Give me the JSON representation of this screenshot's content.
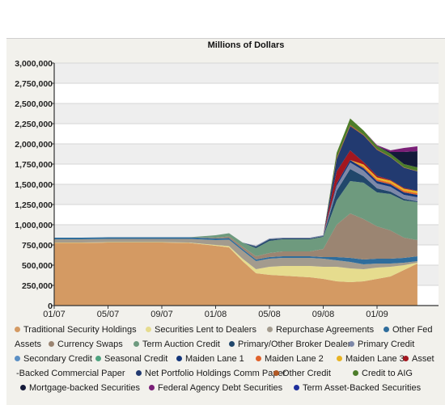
{
  "chart_data": {
    "type": "area",
    "title": "Millions of Dollars",
    "xlabel": "",
    "ylabel": "",
    "stacked": true,
    "ylim": [
      0,
      3000000
    ],
    "yticks": [
      "0",
      "250,000",
      "500,000",
      "750,000",
      "1,000,000",
      "1,250,000",
      "1,500,000",
      "1,750,000",
      "2,000,000",
      "2,250,000",
      "2,500,000",
      "2,750,000",
      "3,000,000"
    ],
    "xticks": [
      "01/07",
      "05/07",
      "09/07",
      "01/08",
      "05/08",
      "09/08",
      "01/09"
    ],
    "grid": true,
    "legend_position": "bottom",
    "x": [
      "2007-01",
      "2007-03",
      "2007-05",
      "2007-07",
      "2007-09",
      "2007-11",
      "2008-01",
      "2008-02",
      "2008-03",
      "2008-04",
      "2008-05",
      "2008-06",
      "2008-07",
      "2008-08",
      "2008-09",
      "2008-10",
      "2008-11",
      "2008-12",
      "2009-01",
      "2009-02",
      "2009-03",
      "2009-04"
    ],
    "series": [
      {
        "name": "Traditional Security Holdings",
        "color": "#d49a63",
        "values": [
          775000,
          775000,
          780000,
          780000,
          780000,
          775000,
          740000,
          720000,
          550000,
          400000,
          380000,
          370000,
          360000,
          350000,
          330000,
          300000,
          290000,
          300000,
          330000,
          360000,
          440000,
          520000
        ]
      },
      {
        "name": "Securities Lent to Dealers",
        "color": "#e6dc8e",
        "values": [
          5000,
          5000,
          5000,
          5000,
          5000,
          5000,
          10000,
          15000,
          30000,
          50000,
          100000,
          120000,
          130000,
          140000,
          150000,
          180000,
          170000,
          150000,
          140000,
          120000,
          60000,
          10000
        ]
      },
      {
        "name": "Repurchase Agreements",
        "color": "#a39b8e",
        "values": [
          40000,
          40000,
          40000,
          40000,
          40000,
          45000,
          60000,
          80000,
          100000,
          100000,
          100000,
          100000,
          100000,
          100000,
          100000,
          80000,
          80000,
          60000,
          50000,
          40000,
          30000,
          20000
        ]
      },
      {
        "name": "Other Fed Assets",
        "color": "#2f6d9c",
        "values": [
          20000,
          20000,
          20000,
          20000,
          20000,
          20000,
          20000,
          20000,
          20000,
          20000,
          20000,
          20000,
          20000,
          20000,
          20000,
          40000,
          50000,
          60000,
          60000,
          60000,
          60000,
          60000
        ]
      },
      {
        "name": "Currency Swaps",
        "color": "#9b8572",
        "values": [
          0,
          0,
          0,
          0,
          0,
          0,
          10000,
          20000,
          30000,
          40000,
          50000,
          60000,
          60000,
          60000,
          100000,
          400000,
          550000,
          500000,
          400000,
          350000,
          250000,
          200000
        ]
      },
      {
        "name": "Term Auction Credit",
        "color": "#6e9a7e",
        "values": [
          0,
          0,
          0,
          0,
          0,
          0,
          30000,
          40000,
          50000,
          100000,
          150000,
          150000,
          150000,
          150000,
          150000,
          300000,
          400000,
          450000,
          420000,
          450000,
          460000,
          470000
        ]
      },
      {
        "name": "Primary/Other Broker Dealer",
        "color": "#21476b",
        "values": [
          0,
          0,
          0,
          0,
          0,
          0,
          0,
          0,
          0,
          20000,
          20000,
          10000,
          10000,
          10000,
          10000,
          120000,
          150000,
          80000,
          50000,
          30000,
          20000,
          10000
        ]
      },
      {
        "name": "Primary Credit",
        "color": "#7d88a8",
        "values": [
          0,
          0,
          0,
          0,
          0,
          0,
          0,
          0,
          0,
          10000,
          10000,
          10000,
          10000,
          10000,
          10000,
          60000,
          80000,
          70000,
          60000,
          60000,
          50000,
          50000
        ]
      },
      {
        "name": "Secondary Credit",
        "color": "#5b8fc4",
        "values": [
          0,
          0,
          0,
          0,
          0,
          0,
          0,
          0,
          0,
          0,
          0,
          0,
          0,
          0,
          0,
          0,
          0,
          0,
          0,
          0,
          0,
          0
        ]
      },
      {
        "name": "Seasonal Credit",
        "color": "#4fa37f",
        "values": [
          0,
          0,
          0,
          0,
          0,
          0,
          0,
          0,
          0,
          0,
          0,
          0,
          0,
          0,
          0,
          0,
          0,
          0,
          0,
          0,
          0,
          0
        ]
      },
      {
        "name": "Maiden Lane 1",
        "color": "#14367a",
        "values": [
          0,
          0,
          0,
          0,
          0,
          0,
          0,
          0,
          0,
          0,
          0,
          0,
          0,
          0,
          0,
          30000,
          30000,
          30000,
          30000,
          30000,
          30000,
          30000
        ]
      },
      {
        "name": "Maiden Lane 2",
        "color": "#e0622b",
        "values": [
          0,
          0,
          0,
          0,
          0,
          0,
          0,
          0,
          0,
          0,
          0,
          0,
          0,
          0,
          0,
          0,
          0,
          20000,
          20000,
          20000,
          20000,
          20000
        ]
      },
      {
        "name": "Maiden Lane 3",
        "color": "#e8b323",
        "values": [
          0,
          0,
          0,
          0,
          0,
          0,
          0,
          0,
          0,
          0,
          0,
          0,
          0,
          0,
          0,
          0,
          0,
          25000,
          25000,
          25000,
          25000,
          25000
        ]
      },
      {
        "name": "Asset-Backed Commercial Paper",
        "color": "#a3171f",
        "values": [
          0,
          0,
          0,
          0,
          0,
          0,
          0,
          0,
          0,
          0,
          0,
          0,
          0,
          0,
          0,
          150000,
          120000,
          30000,
          20000,
          10000,
          10000,
          5000
        ]
      },
      {
        "name": "Net Portfolio Holdings Comm Paper",
        "color": "#223a70",
        "values": [
          0,
          0,
          0,
          0,
          0,
          0,
          0,
          0,
          0,
          0,
          0,
          0,
          0,
          0,
          0,
          150000,
          300000,
          330000,
          320000,
          280000,
          250000,
          240000
        ]
      },
      {
        "name": "Other Credit",
        "color": "#b35a25",
        "values": [
          0,
          0,
          0,
          0,
          0,
          0,
          0,
          0,
          0,
          0,
          0,
          0,
          0,
          0,
          0,
          20000,
          15000,
          10000,
          10000,
          5000,
          5000,
          5000
        ]
      },
      {
        "name": "Credit to AIG",
        "color": "#4d7d2a",
        "values": [
          0,
          0,
          0,
          0,
          0,
          0,
          0,
          0,
          0,
          0,
          0,
          0,
          0,
          0,
          0,
          60000,
          80000,
          50000,
          40000,
          40000,
          40000,
          45000
        ]
      },
      {
        "name": "Mortgage-backed Securities",
        "color": "#141a3a",
        "values": [
          0,
          0,
          0,
          0,
          0,
          0,
          0,
          0,
          0,
          0,
          0,
          0,
          0,
          0,
          0,
          0,
          0,
          0,
          0,
          20000,
          150000,
          200000
        ]
      },
      {
        "name": "Federal Agency Debt Securities",
        "color": "#7a1f77",
        "values": [
          0,
          0,
          0,
          0,
          0,
          0,
          0,
          0,
          0,
          0,
          0,
          0,
          0,
          0,
          0,
          0,
          0,
          0,
          10000,
          20000,
          50000,
          60000
        ]
      },
      {
        "name": "Term Asset-Backed Securities",
        "color": "#1f2f9c",
        "values": [
          0,
          0,
          0,
          0,
          0,
          0,
          0,
          0,
          0,
          0,
          0,
          0,
          0,
          0,
          0,
          0,
          0,
          0,
          0,
          0,
          0,
          0
        ]
      }
    ]
  },
  "legend_rows": [
    [
      {
        "label": "Traditional Security Holdings",
        "color": "#d49a63"
      },
      {
        "label": "Securities Lent to Dealers",
        "color": "#e6dc8e"
      },
      {
        "label": "Repurchase Agreements",
        "color": "#a39b8e"
      },
      {
        "label": "Other Fed",
        "color": "#2f6d9c"
      }
    ],
    [
      {
        "label": "Assets",
        "color": ""
      },
      {
        "label": "Currency Swaps",
        "color": "#9b8572"
      },
      {
        "label": "Term Auction Credit",
        "color": "#6e9a7e"
      },
      {
        "label": "Primary/Other Broker Dealer",
        "color": "#21476b"
      },
      {
        "label": "Primary Credit",
        "color": "#7d88a8"
      }
    ],
    [
      {
        "label": "Secondary Credit",
        "color": "#5b8fc4"
      },
      {
        "label": "Seasonal Credit",
        "color": "#4fa37f"
      },
      {
        "label": "Maiden Lane 1",
        "color": "#14367a"
      },
      {
        "label": "Maiden Lane 2",
        "color": "#e0622b"
      },
      {
        "label": "Maiden Lane 3",
        "color": "#e8b323"
      },
      {
        "label": "Asset",
        "color": "#a3171f"
      }
    ],
    [
      {
        "label": "-Backed Commercial Paper",
        "color": ""
      },
      {
        "label": "Net Portfolio Holdings Comm Paper",
        "color": "#223a70"
      },
      {
        "label": "Other Credit",
        "color": "#b35a25"
      },
      {
        "label": "Credit to AIG",
        "color": "#4d7d2a"
      }
    ],
    [
      {
        "label": "Mortgage-backed Securities",
        "color": "#141a3a"
      },
      {
        "label": "Federal Agency Debt Securities",
        "color": "#7a1f77"
      },
      {
        "label": "Term Asset-Backed Securities",
        "color": "#1f2f9c"
      }
    ]
  ]
}
